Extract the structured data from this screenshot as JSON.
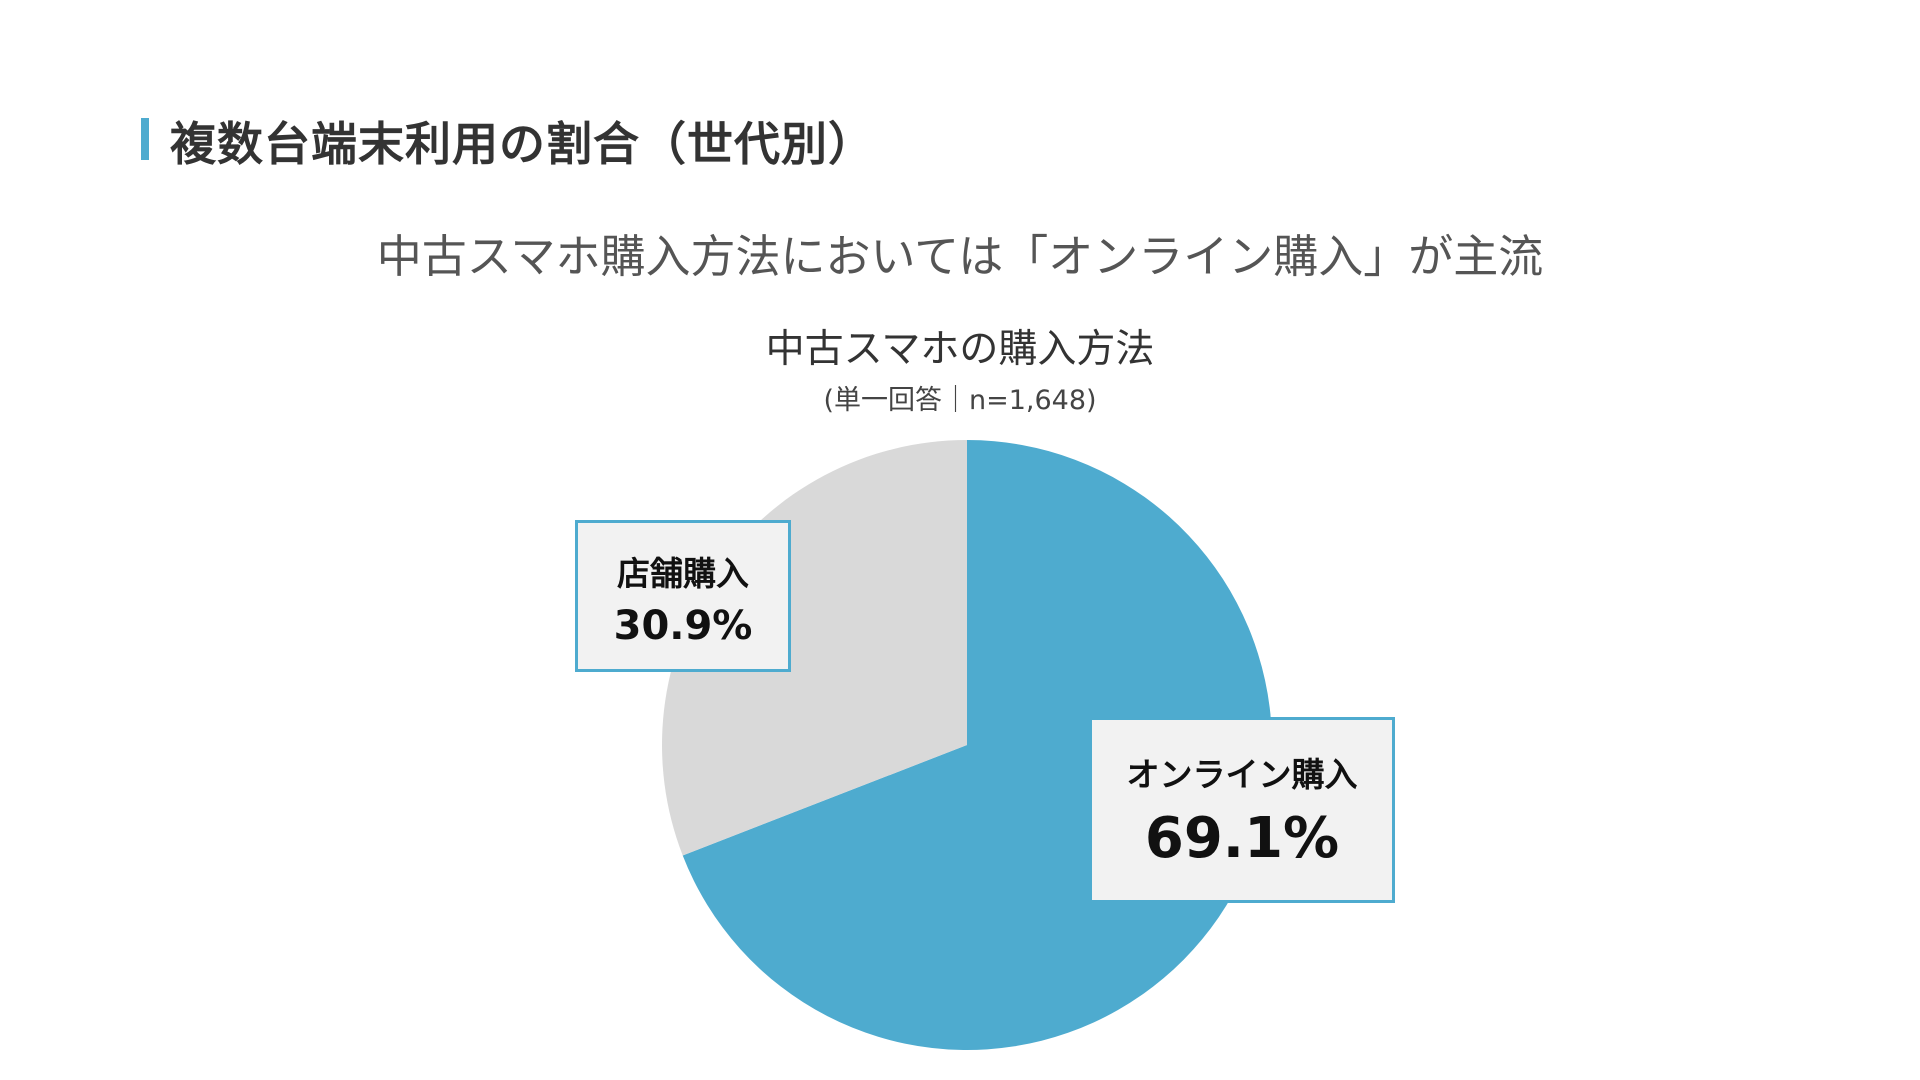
{
  "slide": {
    "title": "複数台端末利用の割合（世代別）",
    "headline": "中古スマホ購入方法においては「オンライン購入」が主流"
  },
  "chart_data": {
    "type": "pie",
    "title": "中古スマホの購入方法",
    "subtitle": "(単一回答｜n=1,648)",
    "slices": [
      {
        "label": "オンライン購入",
        "value": 69.1,
        "display": "69.1%",
        "color": "#4eabcf"
      },
      {
        "label": "店舗購入",
        "value": 30.9,
        "display": "30.9%",
        "color": "#d9d9d9"
      }
    ],
    "legend": "none"
  },
  "colors": {
    "accent": "#4eabcf",
    "secondary": "#d9d9d9"
  }
}
